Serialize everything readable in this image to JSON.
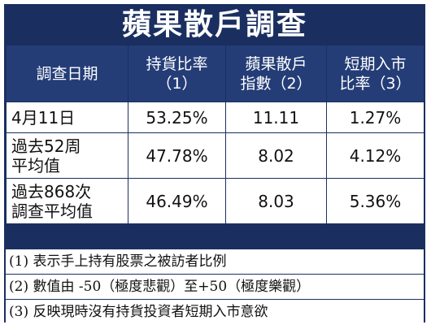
{
  "title": "蘋果散戶調查",
  "headers": [
    "調查日期",
    "持貨比率\n（1）",
    "蘋果散戶\n指數（2）",
    "短期入市\n比率（3）"
  ],
  "rows": [
    {
      "label": "4月11日",
      "values": [
        "53.25%",
        "11.11",
        "1.27%"
      ]
    },
    {
      "label": "過去52周\n平均值",
      "values": [
        "47.78%",
        "8.02",
        "4.12%"
      ]
    },
    {
      "label": "過去868次\n調查平均值",
      "values": [
        "46.49%",
        "8.03",
        "5.36%"
      ]
    }
  ],
  "notes": [
    "(1) 表示手上持有股票之被訪者比例",
    "(2) 數值由 -50（極度悲觀）至+50（極度樂觀）",
    "(3) 反映現時沒有持貨投資者短期入市意欲"
  ]
}
